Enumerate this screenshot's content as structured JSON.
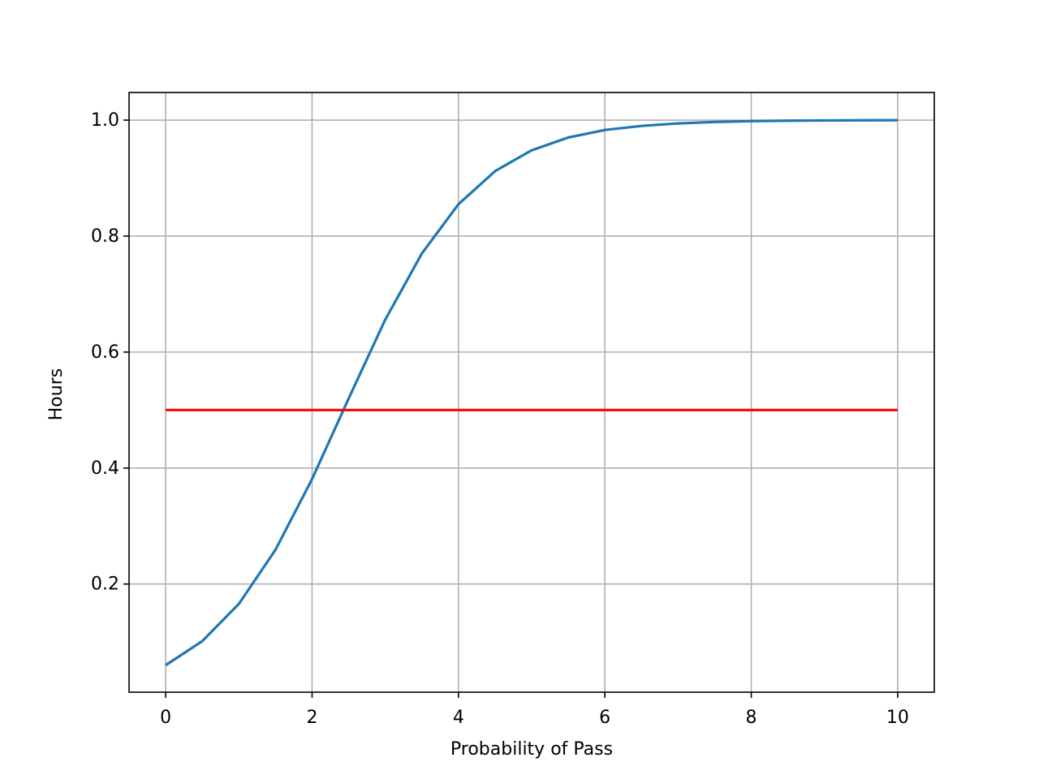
{
  "chart_data": {
    "type": "line",
    "x_label": "Probability of Pass",
    "y_label": "Hours",
    "x": [
      0,
      0.5,
      1,
      1.5,
      2,
      2.5,
      3,
      3.5,
      4,
      4.5,
      5,
      5.5,
      6,
      6.5,
      7,
      7.5,
      8,
      8.5,
      9,
      9.5,
      10
    ],
    "series": [
      {
        "color": "#1f77b4",
        "values": [
          0.06,
          0.1015,
          0.1657,
          0.259,
          0.381,
          0.52,
          0.656,
          0.77,
          0.855,
          0.912,
          0.948,
          0.97,
          0.983,
          0.99,
          0.9943,
          0.9968,
          0.9982,
          0.999,
          0.9994,
          0.9997,
          0.9998
        ]
      },
      {
        "color": "#ff0000",
        "values": [
          0.5,
          0.5,
          0.5,
          0.5,
          0.5,
          0.5,
          0.5,
          0.5,
          0.5,
          0.5,
          0.5,
          0.5,
          0.5,
          0.5,
          0.5,
          0.5,
          0.5,
          0.5,
          0.5,
          0.5,
          0.5
        ]
      }
    ],
    "xlim": [
      -0.5,
      10.5
    ],
    "ylim": [
      0.0135,
      1.0476
    ],
    "xticks": [
      0,
      2,
      4,
      6,
      8,
      10
    ],
    "yticks": [
      0.2,
      0.4,
      0.6,
      0.8,
      {
        "value": 1,
        "label": "1.0"
      }
    ],
    "grid": true
  }
}
